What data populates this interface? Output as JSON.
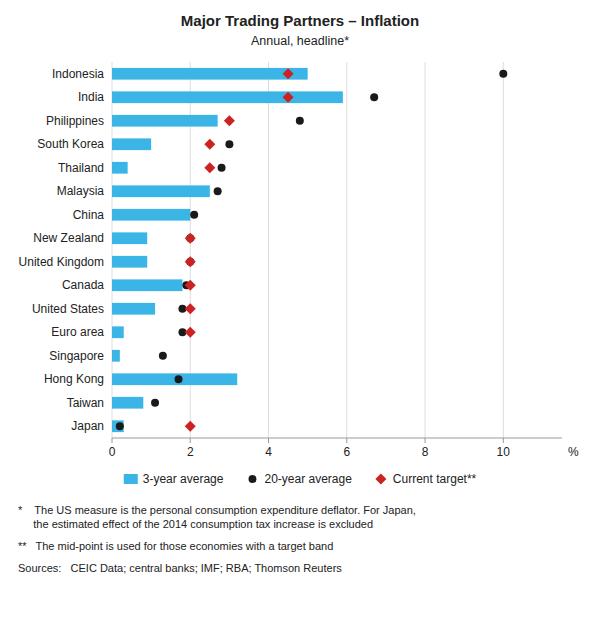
{
  "chart_data": {
    "type": "bar",
    "orientation": "horizontal",
    "title": "Major Trading Partners – Inflation",
    "subtitle": "Annual, headline*",
    "xlabel": "%",
    "xlim": [
      0,
      11.5
    ],
    "xticks": [
      0,
      2,
      4,
      6,
      8,
      10
    ],
    "grid": true,
    "legend": "bottom",
    "categories": [
      "Indonesia",
      "India",
      "Philippines",
      "South Korea",
      "Thailand",
      "Malaysia",
      "China",
      "New Zealand",
      "United Kingdom",
      "Canada",
      "United States",
      "Euro area",
      "Singapore",
      "Hong Kong",
      "Taiwan",
      "Japan"
    ],
    "series": [
      {
        "name": "3-year average",
        "type": "bar",
        "color": "#3ab5e6",
        "values": [
          5.0,
          5.9,
          2.7,
          1.0,
          0.4,
          2.5,
          2.0,
          0.9,
          0.9,
          1.8,
          1.1,
          0.3,
          0.2,
          3.2,
          0.8,
          0.3
        ]
      },
      {
        "name": "20-year average",
        "type": "scatter",
        "marker": "circle",
        "color": "#1a1a1a",
        "values": [
          10.0,
          6.7,
          4.8,
          3.0,
          2.8,
          2.7,
          2.1,
          2.0,
          2.0,
          1.9,
          1.8,
          1.8,
          1.3,
          1.7,
          1.1,
          0.2
        ]
      },
      {
        "name": "Current target**",
        "type": "scatter",
        "marker": "diamond",
        "color": "#cc2222",
        "values": [
          4.5,
          4.5,
          3.0,
          2.5,
          2.5,
          null,
          null,
          2.0,
          2.0,
          2.0,
          2.0,
          2.0,
          null,
          null,
          null,
          2.0
        ]
      }
    ],
    "annotations": [
      "*    The US measure is the personal consumption expenditure deflator. For Japan,\n     the estimated effect of the 2014 consumption tax increase is excluded",
      "**   The mid-point is used for those economies with a target band",
      "Sources:   CEIC Data; central banks; IMF; RBA; Thomson Reuters"
    ]
  }
}
